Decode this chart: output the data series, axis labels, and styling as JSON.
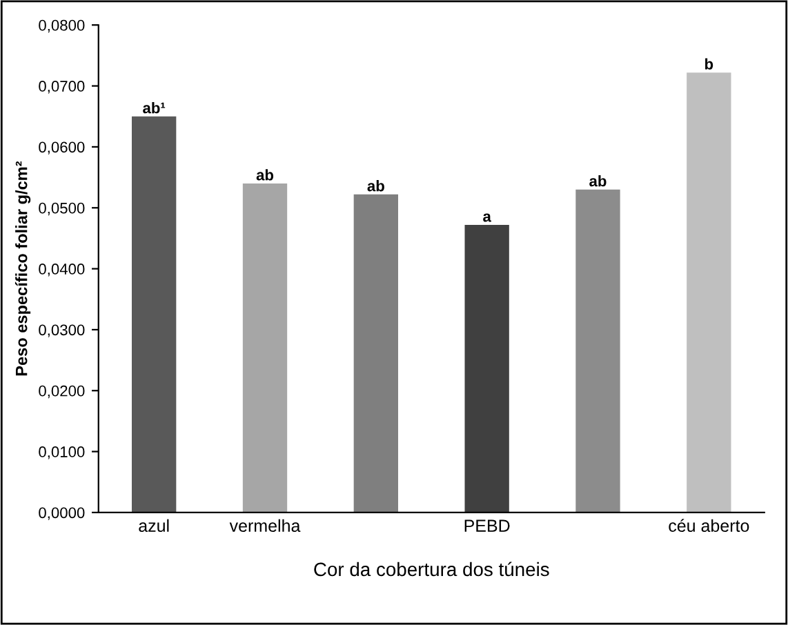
{
  "chart_data": {
    "type": "bar",
    "xlabel": "Cor da cobertura dos túneis",
    "ylabel": "Peso específico foliar g/cm²",
    "categories": [
      "azul",
      "vermelha",
      null,
      "PEBD",
      null,
      "céu aberto"
    ],
    "values": [
      0.065,
      0.054,
      0.0522,
      0.0472,
      0.053,
      0.0722
    ],
    "colors": [
      "#595959",
      "#a6a6a6",
      "#7f7f7f",
      "#404040",
      "#8c8c8c",
      "#bfbfbf"
    ],
    "ylim": [
      0,
      0.08
    ],
    "yticks": [
      {
        "value": 0,
        "label": "0,0000"
      },
      {
        "value": 0.01,
        "label": "0,0100"
      },
      {
        "value": 0.02,
        "label": "0,0200"
      },
      {
        "value": 0.03,
        "label": "0,0300"
      },
      {
        "value": 0.04,
        "label": "0,0400"
      },
      {
        "value": 0.05,
        "label": "0,0500"
      },
      {
        "value": 0.06,
        "label": "0,0600"
      },
      {
        "value": 0.07,
        "label": "0,0700"
      },
      {
        "value": 0.08,
        "label": "0,0800"
      }
    ],
    "annotations": [
      {
        "text": "ab¹",
        "x": "azul",
        "y": 0.065
      },
      {
        "text": "ab",
        "x": "vermelha",
        "y": 0.054
      },
      {
        "text": "ab",
        "y": 0.0522
      },
      {
        "text": "a",
        "x": "PEBD",
        "y": 0.0472
      },
      {
        "text": "ab",
        "y": 0.053
      },
      {
        "text": "b",
        "x": "céu aberto",
        "y": 0.0722
      }
    ],
    "grid": false,
    "legend": false
  }
}
